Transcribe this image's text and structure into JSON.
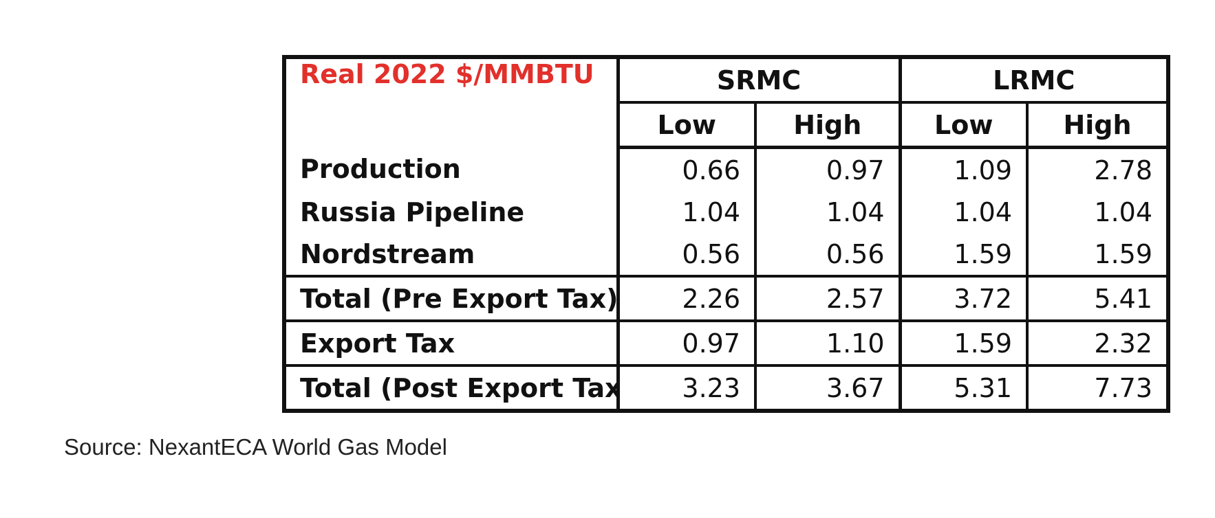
{
  "chart_data": {
    "type": "table",
    "unit_label": "Real 2022 $/MMBTU",
    "groups": [
      "SRMC",
      "LRMC"
    ],
    "columns": [
      "Low",
      "High",
      "Low",
      "High"
    ],
    "rows": [
      {
        "label": "Production",
        "values": [
          "0.66",
          "0.97",
          "1.09",
          "2.78"
        ]
      },
      {
        "label": "Russia Pipeline",
        "values": [
          "1.04",
          "1.04",
          "1.04",
          "1.04"
        ]
      },
      {
        "label": "Nordstream",
        "values": [
          "0.56",
          "0.56",
          "1.59",
          "1.59"
        ]
      },
      {
        "label": "Total (Pre Export Tax)",
        "values": [
          "2.26",
          "2.57",
          "3.72",
          "5.41"
        ]
      },
      {
        "label": "Export Tax",
        "values": [
          "0.97",
          "1.10",
          "1.59",
          "2.32"
        ]
      },
      {
        "label": "Total (Post Export Tax)",
        "values": [
          "3.23",
          "3.67",
          "5.31",
          "7.73"
        ]
      }
    ]
  },
  "source": "Source: NexantECA World Gas Model",
  "colors": {
    "unit_label": "#e2302b",
    "border": "#111111"
  }
}
